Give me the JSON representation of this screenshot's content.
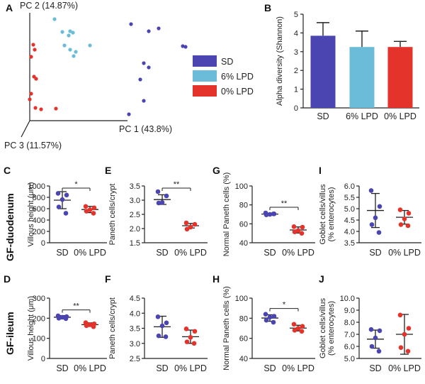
{
  "colors": {
    "sd": "#4a45b0",
    "lpd6": "#6bbcd9",
    "lpd0": "#e4332a"
  },
  "row_labels": {
    "duodenum": "GF-duodenum",
    "ileum": "GF-ileum"
  },
  "chart_data": [
    {
      "panel": "A",
      "type": "scatter",
      "axis_labels": {
        "pc1": "PC 1 (43.8%)",
        "pc2": "PC 2 (14.87%)",
        "pc3": "PC 3 (11.57%)"
      },
      "legend": [
        "SD",
        "6% LPD",
        "0% LPD"
      ]
    },
    {
      "panel": "B",
      "type": "bar",
      "ylabel": "Alpha diversity (Shannon)",
      "categories": [
        "SD",
        "6% LPD",
        "0% LPD"
      ],
      "values": [
        3.85,
        3.25,
        3.25
      ],
      "errors": [
        0.7,
        0.85,
        0.3
      ],
      "ylim": [
        0,
        5
      ],
      "yticks": [
        0,
        1,
        2,
        3,
        4,
        5
      ]
    },
    {
      "panel": "C",
      "type": "scatter",
      "ylabel": "Villous height (μm)",
      "categories": [
        "SD",
        "0% LPD"
      ],
      "series": [
        {
          "name": "SD",
          "values": [
            870,
            840,
            760,
            630,
            520
          ],
          "mean": 750,
          "sd": 150
        },
        {
          "name": "0% LPD",
          "values": [
            640,
            615,
            580,
            555,
            520
          ],
          "mean": 585,
          "sd": 55
        }
      ],
      "ylim": [
        0,
        1000
      ],
      "yticks": [
        0,
        200,
        400,
        600,
        800,
        1000
      ],
      "sig": "*"
    },
    {
      "panel": "E",
      "type": "scatter",
      "ylabel": "Paneth cells/crypt",
      "categories": [
        "SD",
        "0% LPD"
      ],
      "series": [
        {
          "name": "SD",
          "values": [
            3.3,
            3.15,
            2.92,
            2.9
          ],
          "mean": 3.02,
          "sd": 0.17
        },
        {
          "name": "0% LPD",
          "values": [
            2.2,
            2.15,
            2.05,
            1.98
          ],
          "mean": 2.1,
          "sd": 0.08
        }
      ],
      "ylim": [
        1.5,
        3.5
      ],
      "yticks": [
        1.5,
        2.0,
        2.5,
        3.0,
        3.5
      ],
      "sig": "**"
    },
    {
      "panel": "G",
      "type": "scatter",
      "ylabel": "Normal Paneth cells (%)",
      "categories": [
        "SD",
        "0% LPD"
      ],
      "series": [
        {
          "name": "SD",
          "values": [
            71.5,
            70.5,
            70,
            69.5,
            70.5
          ],
          "mean": 70.3,
          "sd": 1.0
        },
        {
          "name": "0% LPD",
          "values": [
            57,
            56.5,
            53,
            51.5,
            50
          ],
          "mean": 53.5,
          "sd": 3.2
        }
      ],
      "ylim": [
        40,
        100
      ],
      "yticks": [
        40,
        60,
        80,
        100
      ],
      "sig": "**"
    },
    {
      "panel": "I",
      "type": "scatter",
      "ylabel": "Goblet cells/villus\n(% enterocytes)",
      "categories": [
        "SD",
        "0% LPD"
      ],
      "series": [
        {
          "name": "SD",
          "values": [
            5.8,
            5.1,
            4.6,
            4.3,
            3.95
          ],
          "mean": 4.92,
          "sd": 0.75
        },
        {
          "name": "0% LPD",
          "values": [
            4.95,
            4.8,
            4.55,
            4.3,
            4.25
          ],
          "mean": 4.62,
          "sd": 0.3
        }
      ],
      "ylim": [
        3.5,
        6.0
      ],
      "yticks": [
        3.5,
        4.0,
        4.5,
        5.0,
        5.5,
        6.0
      ]
    },
    {
      "panel": "D",
      "type": "scatter",
      "ylabel": "Villous height (μm)",
      "categories": [
        "SD",
        "0% LPD"
      ],
      "series": [
        {
          "name": "SD",
          "values": [
            212,
            208,
            205,
            200,
            198
          ],
          "mean": 205,
          "sd": 8
        },
        {
          "name": "0% LPD",
          "values": [
            178,
            172,
            168,
            163,
            158
          ],
          "mean": 168,
          "sd": 9
        }
      ],
      "ylim": [
        0,
        300
      ],
      "yticks": [
        0,
        100,
        200,
        300
      ],
      "sig": "**"
    },
    {
      "panel": "F",
      "type": "scatter",
      "ylabel": "Paneth cells/crypt",
      "categories": [
        "SD",
        "0% LPD"
      ],
      "series": [
        {
          "name": "SD",
          "values": [
            3.88,
            3.68,
            3.58,
            3.25,
            3.22
          ],
          "mean": 3.55,
          "sd": 0.35
        },
        {
          "name": "0% LPD",
          "values": [
            3.48,
            3.4,
            3.2,
            3.05,
            3.0
          ],
          "mean": 3.22,
          "sd": 0.22
        }
      ],
      "ylim": [
        2.5,
        4.5
      ],
      "yticks": [
        2.5,
        3.0,
        3.5,
        4.0,
        4.5
      ]
    },
    {
      "panel": "H",
      "type": "scatter",
      "ylabel": "Normal Paneth cells (%)",
      "categories": [
        "SD",
        "0% LPD"
      ],
      "series": [
        {
          "name": "SD",
          "values": [
            84,
            82,
            81,
            78,
            76
          ],
          "mean": 80.2,
          "sd": 3.2
        },
        {
          "name": "0% LPD",
          "values": [
            74,
            72,
            70,
            68,
            67
          ],
          "mean": 70.2,
          "sd": 2.8
        }
      ],
      "ylim": [
        40,
        100
      ],
      "yticks": [
        40,
        60,
        80,
        100
      ],
      "sig": "*"
    },
    {
      "panel": "J",
      "type": "scatter",
      "ylabel": "Goblet cells/villus\n(% enterocytes)",
      "categories": [
        "SD",
        "0% LPD"
      ],
      "series": [
        {
          "name": "SD",
          "values": [
            7.4,
            7.3,
            6.7,
            6.0,
            5.6
          ],
          "mean": 6.6,
          "sd": 0.75
        },
        {
          "name": "0% LPD",
          "values": [
            8.6,
            7.5,
            7.0,
            5.9,
            5.6
          ],
          "mean": 7.0,
          "sd": 1.65
        }
      ],
      "ylim": [
        5,
        10
      ],
      "yticks": [
        5,
        6,
        7,
        8,
        9,
        10
      ]
    }
  ]
}
